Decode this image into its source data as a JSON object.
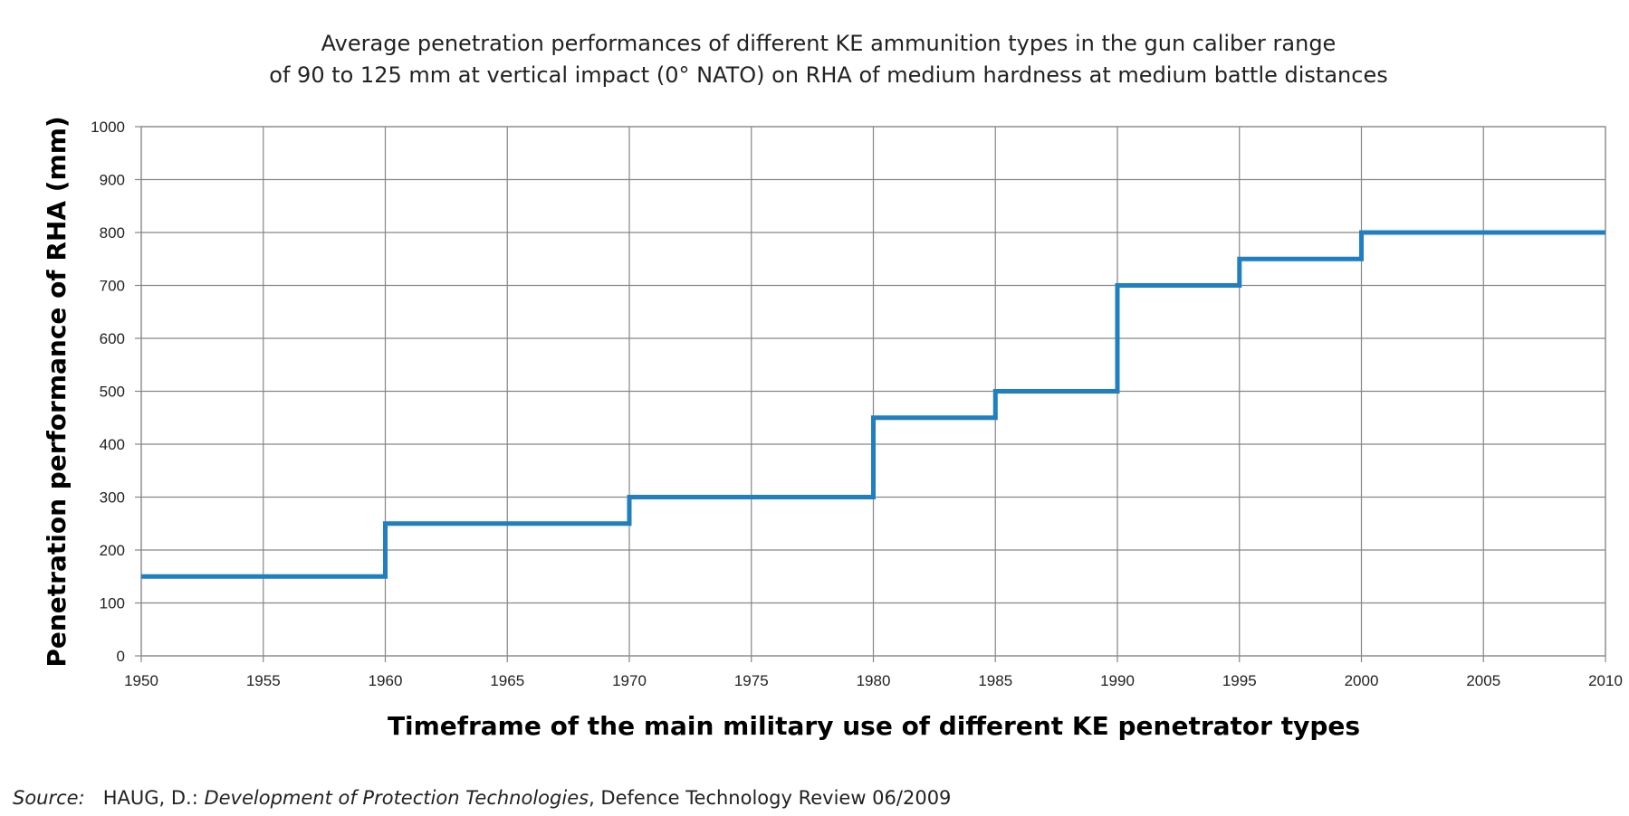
{
  "chart_data": {
    "type": "line",
    "step": true,
    "title": [
      "Average penetration performances of different KE ammunition types in the gun caliber range",
      "of 90 to 125 mm at vertical impact (0° NATO) on RHA of medium hardness at medium battle distances"
    ],
    "xlabel": "Timeframe of the main military use of different KE penetrator types",
    "ylabel": "Penetration performance of RHA (mm)",
    "xlim": [
      1950,
      2010
    ],
    "ylim": [
      0,
      1000
    ],
    "xticks": [
      "1950",
      "1955",
      "1960",
      "1965",
      "1970",
      "1975",
      "1980",
      "1985",
      "1990",
      "1995",
      "2000",
      "2005",
      "2010"
    ],
    "yticks": [
      "0",
      "100",
      "200",
      "300",
      "400",
      "500",
      "600",
      "700",
      "800",
      "900",
      "1000"
    ],
    "grid": true,
    "line_color": "#1F7FC1",
    "series": [
      {
        "x": [
          1950,
          1960,
          1960,
          1970,
          1970,
          1980,
          1980,
          1985,
          1985,
          1990,
          1990,
          1995,
          1995,
          2000,
          2000,
          2010
        ],
        "y": [
          150,
          150,
          250,
          250,
          300,
          300,
          450,
          450,
          500,
          500,
          700,
          700,
          750,
          750,
          800,
          800
        ]
      }
    ]
  },
  "source": {
    "label": "Source:",
    "author": "HAUG, D.:",
    "work": "Development of Protection Technologies",
    "publication": ", Defence Technology Review 06/2009"
  }
}
